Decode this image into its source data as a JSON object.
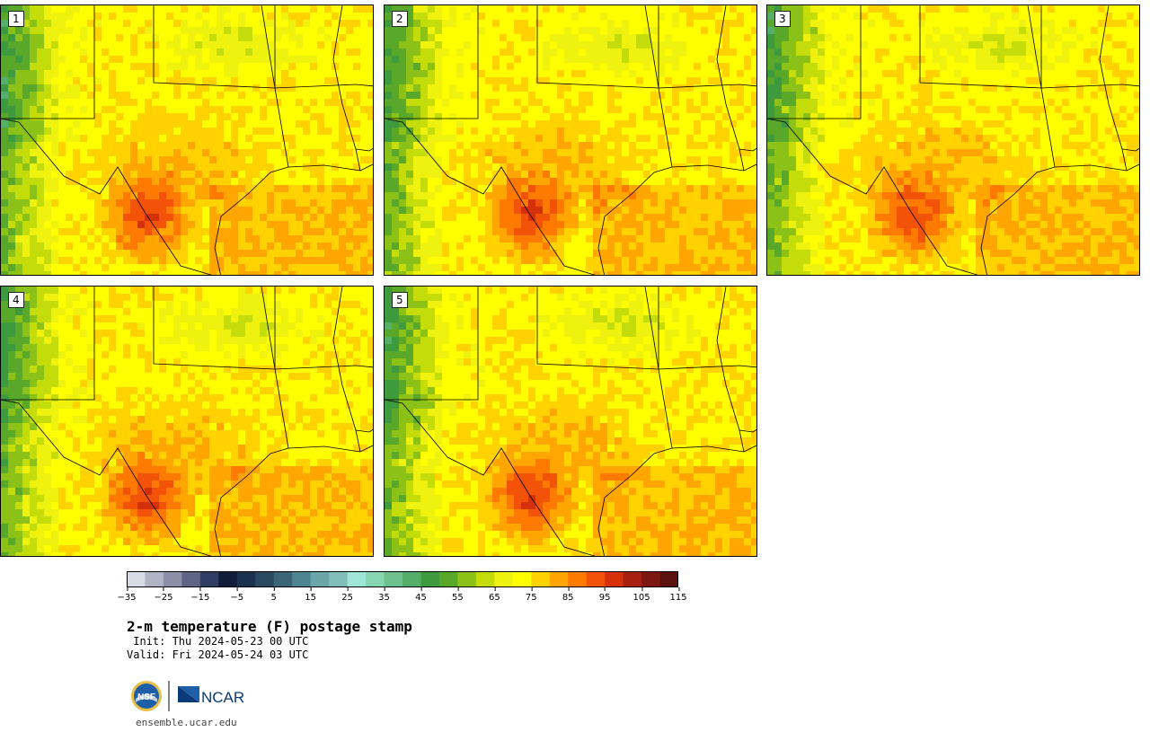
{
  "panels": [
    {
      "label": "1"
    },
    {
      "label": "2"
    },
    {
      "label": "3"
    },
    {
      "label": "4"
    },
    {
      "label": "5"
    }
  ],
  "colorbar": {
    "ticks": [
      "−35",
      "−25",
      "−15",
      "−5",
      "5",
      "15",
      "25",
      "35",
      "45",
      "55",
      "65",
      "75",
      "85",
      "95",
      "105",
      "115"
    ],
    "colors": [
      "#d7dbe4",
      "#b1b4c4",
      "#8c8fa5",
      "#5d6486",
      "#303d64",
      "#111c3a",
      "#1c3050",
      "#2a4a62",
      "#3a6478",
      "#4f8590",
      "#6aa6a8",
      "#80bfb9",
      "#9ee6d7",
      "#86d6b2",
      "#6fc08f",
      "#55ae6a",
      "#3e9a3e",
      "#5aa82a",
      "#8cc217",
      "#c4dc0a",
      "#eef20e",
      "#ffff00",
      "#ffd200",
      "#ffa600",
      "#ff7a00",
      "#f25308",
      "#d4300a",
      "#a8200d",
      "#7e170f",
      "#5b120e"
    ]
  },
  "title": "2-m temperature (F) postage stamp",
  "init_line": " Init: Thu 2024-05-23 00 UTC",
  "valid_line": "Valid: Fri 2024-05-24 03 UTC",
  "logo": {
    "nsf": "NSF",
    "ncar": "NCAR"
  },
  "url": "ensemble.ucar.edu"
}
